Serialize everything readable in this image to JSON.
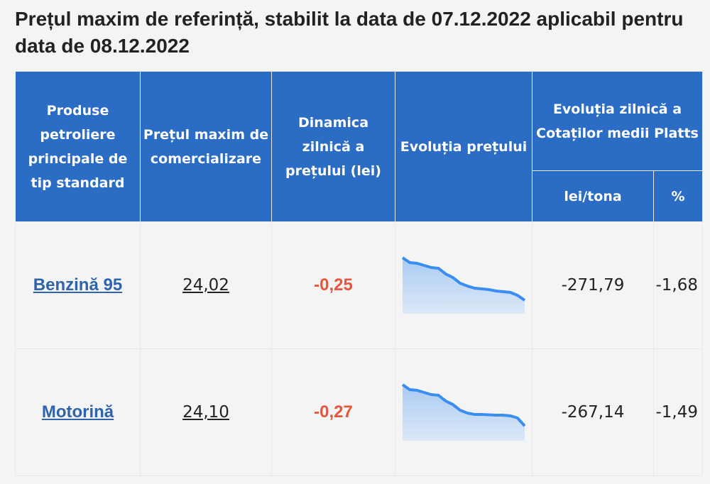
{
  "title": "Prețul maxim de referință, stabilit la data de 07.12.2022 aplicabil pentru data de 08.12.2022",
  "headers": {
    "product": "Produse petroliere principale de tip standard",
    "max_price": "Prețul maxim de comercializare",
    "dynamics": "Dinamica zilnică a prețului (lei)",
    "evolution": "Evoluția prețului",
    "platts": "Evoluția zilnică a Cotaților medii Platts",
    "lei_tona": "lei/tona",
    "percent": "%"
  },
  "rows": [
    {
      "product": "Benzină 95",
      "price": "24,02",
      "dynamics": "-0,25",
      "platts_lei": "-271,79",
      "platts_pct": "-1,68"
    },
    {
      "product": "Motorină",
      "price": "24,10",
      "dynamics": "-0,27",
      "platts_lei": "-267,14",
      "platts_pct": "-1,49"
    }
  ],
  "chart_data": [
    {
      "type": "area",
      "name": "Benzină 95 price trend",
      "values": [
        100,
        93,
        92,
        89,
        86,
        85,
        77,
        72,
        64,
        60,
        57,
        56,
        55,
        53,
        52,
        51,
        47,
        40
      ]
    },
    {
      "type": "area",
      "name": "Motorină price trend",
      "values": [
        100,
        93,
        92,
        89,
        86,
        85,
        77,
        72,
        64,
        60,
        58,
        58,
        57.5,
        57,
        57,
        56,
        53,
        42
      ]
    }
  ],
  "colors": {
    "header": "#2b6cc4",
    "line": "#3a8ef0",
    "negative": "#e8553a",
    "link": "#2f64ac"
  }
}
